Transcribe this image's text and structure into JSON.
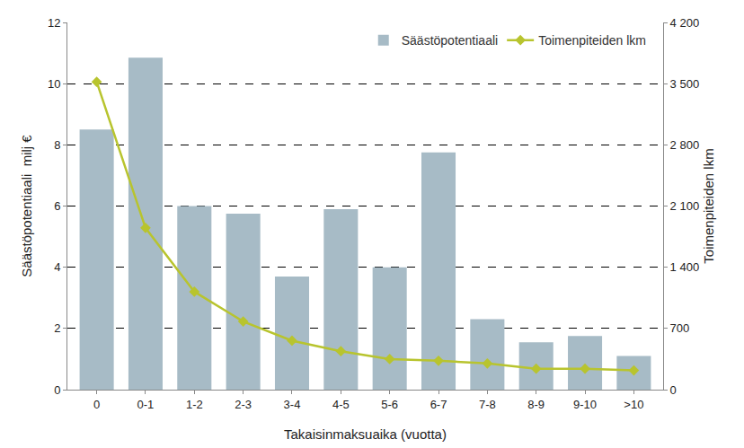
{
  "chart_data": {
    "type": "bar",
    "x_label": "Takaisinmaksuaika (vuotta)",
    "y_label": "Säästöpotentiaali  milj €",
    "y2_label": "Toimenpiteiden lkm",
    "categories": [
      "0",
      "0-1",
      "1-2",
      "2-3",
      "3-4",
      "4-5",
      "5-6",
      "6-7",
      "7-8",
      "8-9",
      "9-10",
      ">10"
    ],
    "series": [
      {
        "name": "Säästöpotentiaali",
        "type": "bar",
        "color": "#a7bbc6",
        "values": [
          8.5,
          10.85,
          6.0,
          5.75,
          3.7,
          5.9,
          4.0,
          7.75,
          2.3,
          1.55,
          1.75,
          1.1
        ]
      },
      {
        "name": "Toimenpiteiden lkm",
        "type": "line",
        "axis": "y2",
        "color": "#b8c42e",
        "marker": "diamond",
        "values": [
          3520,
          1850,
          1120,
          780,
          560,
          440,
          350,
          330,
          300,
          240,
          240,
          220
        ]
      }
    ],
    "ylim": [
      0,
      12
    ],
    "yticks": [
      0,
      2,
      4,
      6,
      8,
      10,
      12
    ],
    "y2lim": [
      0,
      4200
    ],
    "y2ticks": [
      0,
      700,
      {
        "value": 1400,
        "label": "1 400"
      },
      {
        "value": 2100,
        "label": "2 100"
      },
      {
        "value": 2800,
        "label": "2 800"
      },
      {
        "value": 3500,
        "label": "3 500"
      },
      {
        "value": 4200,
        "label": "4 200"
      }
    ],
    "grid": true,
    "legend": "upper right"
  }
}
